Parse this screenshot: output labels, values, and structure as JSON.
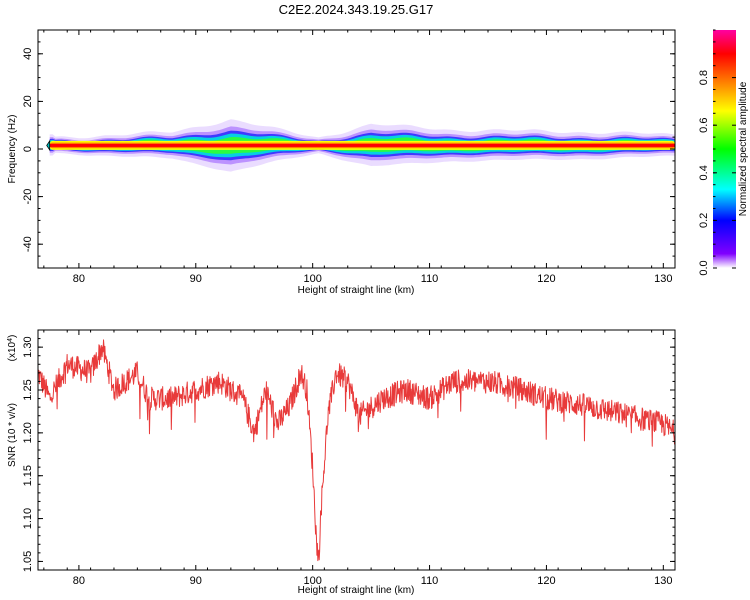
{
  "title": "C2E2.2024.343.19.25.G17",
  "chart_data": [
    {
      "type": "heatmap",
      "xlabel": "Height of straight line (km)",
      "ylabel": "Frequency (Hz)",
      "xlim": [
        76.5,
        131
      ],
      "ylim": [
        -50,
        50
      ],
      "xticks": [
        "80",
        "90",
        "100",
        "110",
        "120",
        "130"
      ],
      "yticks": [
        "40",
        "20",
        "0",
        "-20",
        "-40"
      ],
      "colorbar": {
        "label": "Normalized spectral amplitude",
        "range": [
          0,
          1
        ],
        "ticks": [
          "0.0",
          "0.2",
          "0.4",
          "0.6",
          "0.8"
        ],
        "colors": [
          "#ffffff",
          "#8000ff",
          "#0000ff",
          "#00ffff",
          "#00ff00",
          "#ffff00",
          "#ff8000",
          "#ff0000",
          "#ff00a0"
        ]
      },
      "band": {
        "x_start": 77.5,
        "center_frequency_hz": 1.5,
        "spread_profile": [
          {
            "x": 78,
            "halfwidth_hz": 1.5
          },
          {
            "x": 88,
            "halfwidth_hz": 2.5
          },
          {
            "x": 93,
            "halfwidth_hz": 5
          },
          {
            "x": 97,
            "halfwidth_hz": 3
          },
          {
            "x": 100.5,
            "halfwidth_hz": 1.5
          },
          {
            "x": 105,
            "halfwidth_hz": 4
          },
          {
            "x": 112,
            "halfwidth_hz": 3
          },
          {
            "x": 125,
            "halfwidth_hz": 2.5
          },
          {
            "x": 131,
            "halfwidth_hz": 2
          }
        ]
      }
    },
    {
      "type": "line",
      "xlabel": "Height of straight line (km)",
      "ylabel": "SNR (10 * v/v)",
      "yscale_label": "(x10",
      "yscale_exp": "4",
      "xlim": [
        76.5,
        131
      ],
      "ylim": [
        1.04,
        1.32
      ],
      "xticks": [
        "80",
        "90",
        "100",
        "110",
        "120",
        "130"
      ],
      "yticks": [
        "1.30",
        "1.25",
        "1.20",
        "1.15",
        "1.10",
        "1.05"
      ],
      "series": [
        {
          "color": "#e83a3a",
          "trend": [
            [
              76.5,
              1.27
            ],
            [
              77.5,
              1.24
            ],
            [
              79,
              1.28
            ],
            [
              81,
              1.27
            ],
            [
              82,
              1.3
            ],
            [
              83,
              1.25
            ],
            [
              85,
              1.27
            ],
            [
              86,
              1.24
            ],
            [
              88,
              1.24
            ],
            [
              90,
              1.25
            ],
            [
              92,
              1.26
            ],
            [
              94,
              1.24
            ],
            [
              95,
              1.2
            ],
            [
              96,
              1.25
            ],
            [
              97,
              1.21
            ],
            [
              98,
              1.23
            ],
            [
              99,
              1.27
            ],
            [
              99.5,
              1.25
            ],
            [
              100,
              1.16
            ],
            [
              100.3,
              1.08
            ],
            [
              100.5,
              1.05
            ],
            [
              100.8,
              1.13
            ],
            [
              101.3,
              1.22
            ],
            [
              102,
              1.27
            ],
            [
              103,
              1.26
            ],
            [
              104,
              1.22
            ],
            [
              106,
              1.24
            ],
            [
              108,
              1.25
            ],
            [
              110,
              1.24
            ],
            [
              112,
              1.26
            ],
            [
              115,
              1.26
            ],
            [
              118,
              1.25
            ],
            [
              120,
              1.24
            ],
            [
              124,
              1.23
            ],
            [
              127,
              1.22
            ],
            [
              130,
              1.21
            ],
            [
              131,
              1.2
            ]
          ]
        }
      ]
    }
  ]
}
